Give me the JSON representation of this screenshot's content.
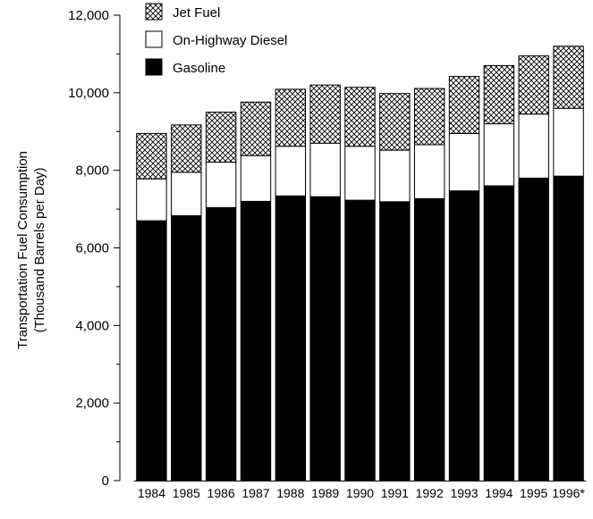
{
  "chart_data": {
    "type": "bar",
    "stacked": true,
    "ylabel_line1": "Transportation Fuel Consumption",
    "ylabel_line2": "(Thousand Barrels per Day)",
    "ylim": [
      0,
      12000
    ],
    "yticks": [
      0,
      2000,
      4000,
      6000,
      8000,
      10000,
      12000
    ],
    "ytick_labels": [
      "0",
      "2,000",
      "4,000",
      "6,000",
      "8,000",
      "10,000",
      "12,000"
    ],
    "categories": [
      "1984",
      "1985",
      "1986",
      "1987",
      "1988",
      "1989",
      "1990",
      "1991",
      "1992",
      "1993",
      "1994",
      "1995",
      "1996*"
    ],
    "legend_position": "top-left",
    "series": [
      {
        "name": "Gasoline",
        "fill": "black",
        "values": [
          6700,
          6830,
          7040,
          7200,
          7340,
          7320,
          7230,
          7190,
          7270,
          7470,
          7600,
          7800,
          7850
        ]
      },
      {
        "name": "On-Highway Diesel",
        "fill": "white",
        "values": [
          1080,
          1120,
          1170,
          1180,
          1280,
          1380,
          1390,
          1330,
          1390,
          1480,
          1600,
          1650,
          1750
        ]
      },
      {
        "name": "Jet Fuel",
        "fill": "crosshatch",
        "values": [
          1170,
          1220,
          1290,
          1380,
          1470,
          1500,
          1520,
          1460,
          1450,
          1470,
          1500,
          1500,
          1600
        ]
      }
    ],
    "legend_order": [
      2,
      1,
      0
    ]
  }
}
